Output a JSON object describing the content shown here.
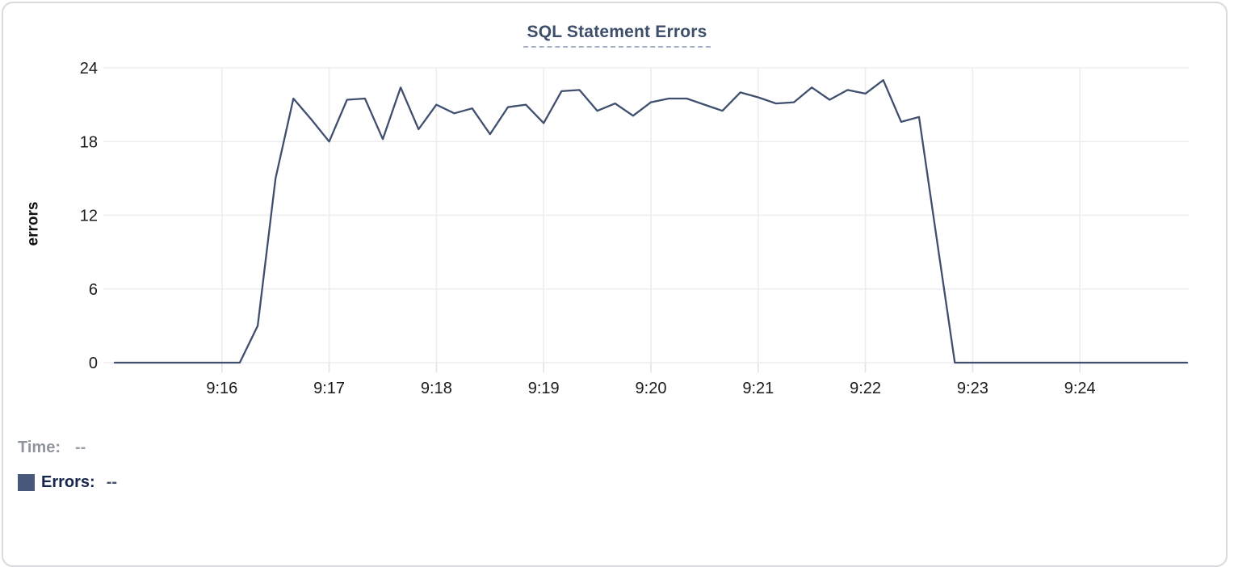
{
  "chart_data": {
    "type": "line",
    "title": "SQL Statement Errors",
    "xlabel": "",
    "ylabel": "errors",
    "x_start": "9:15:00",
    "x_end": "9:25:00",
    "x_interval_seconds": 10,
    "x_tick_labels": [
      "9:16",
      "9:17",
      "9:18",
      "9:19",
      "9:20",
      "9:21",
      "9:22",
      "9:23",
      "9:24"
    ],
    "y_ticks": [
      0,
      6,
      12,
      18,
      24
    ],
    "ylim": [
      0,
      24
    ],
    "grid": true,
    "legend_position": "bottom-left",
    "series": [
      {
        "name": "Errors",
        "color": "#3f4f6e",
        "values": [
          0,
          0,
          0,
          0,
          0,
          0,
          0,
          0,
          3,
          15,
          21.5,
          19.8,
          18,
          21.4,
          21.5,
          18.2,
          22.4,
          19,
          21,
          20.3,
          20.7,
          18.6,
          20.8,
          21,
          19.5,
          22.1,
          22.2,
          20.5,
          21.1,
          20.1,
          21.2,
          21.5,
          21.5,
          21,
          20.5,
          22,
          21.6,
          21.1,
          21.2,
          22.4,
          21.4,
          22.2,
          21.9,
          23,
          19.6,
          20,
          10,
          0,
          0,
          0,
          0,
          0,
          0,
          0,
          0,
          0,
          0,
          0,
          0,
          0,
          0
        ]
      }
    ]
  },
  "tooltip_readout": {
    "time_label": "Time:",
    "time_value": "--",
    "errors_label": "Errors:",
    "errors_value": "--"
  },
  "colors": {
    "title": "#3d4f6b",
    "line": "#3f4f6e",
    "legend_swatch": "#47587a",
    "grid": "#ededf0",
    "tick_text": "#1b1b1f"
  }
}
